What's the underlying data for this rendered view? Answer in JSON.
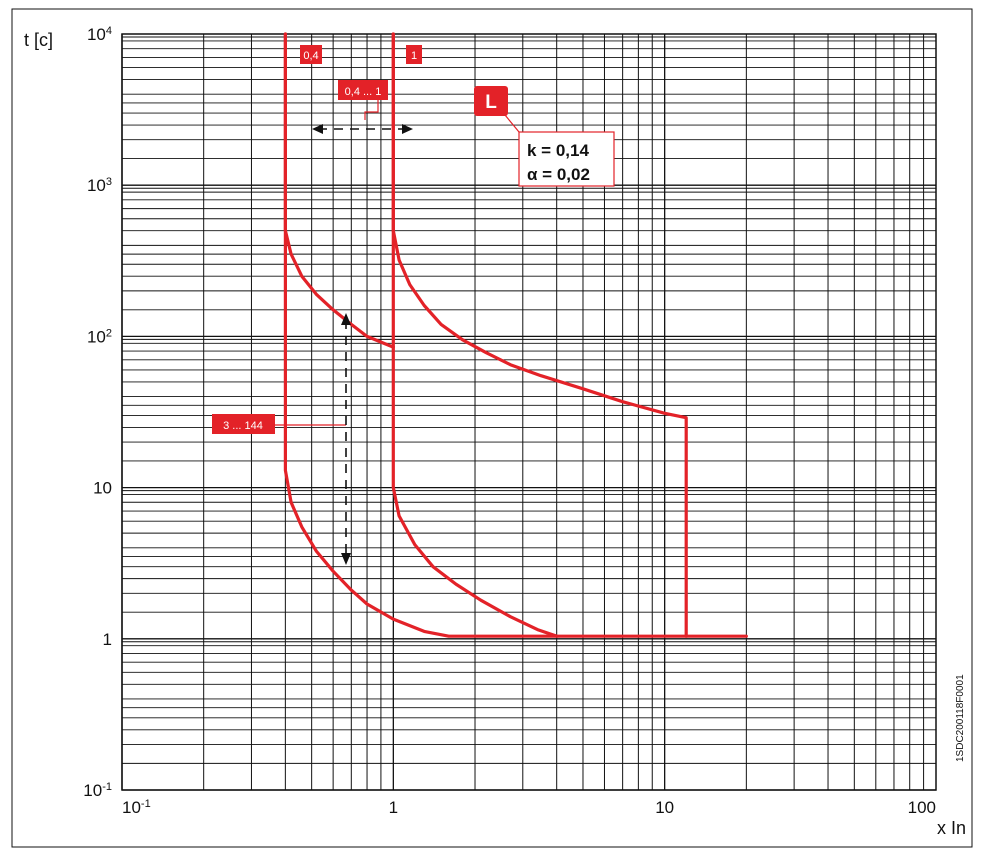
{
  "chart_data": {
    "type": "line",
    "x_scale": "log",
    "y_scale": "log",
    "xlim": [
      0.1,
      100
    ],
    "ylim": [
      0.1,
      10000
    ],
    "grid": true,
    "ylabel": "t [c]",
    "xlabel": "x In",
    "x_ticks": [
      {
        "value": 0.1,
        "base": "10",
        "exp": "-1"
      },
      {
        "value": 1,
        "base": "1",
        "exp": ""
      },
      {
        "value": 10,
        "base": "10",
        "exp": ""
      },
      {
        "value": 100,
        "base": "100",
        "exp": ""
      }
    ],
    "y_ticks": [
      {
        "value": 0.1,
        "base": "10",
        "exp": "-1"
      },
      {
        "value": 1,
        "base": "1",
        "exp": ""
      },
      {
        "value": 10,
        "base": "10",
        "exp": ""
      },
      {
        "value": 100,
        "base": "10",
        "exp": "2"
      },
      {
        "value": 1000,
        "base": "10",
        "exp": "3"
      },
      {
        "value": 10000,
        "base": "10",
        "exp": "4"
      }
    ],
    "series": [
      {
        "points": [
          [
            0.4,
            10000
          ],
          [
            0.4,
            500
          ],
          [
            0.42,
            350
          ],
          [
            0.46,
            250
          ],
          [
            0.52,
            190
          ],
          [
            0.6,
            150
          ],
          [
            0.7,
            120
          ],
          [
            0.8,
            100
          ],
          [
            1.0,
            85
          ]
        ]
      },
      {
        "points": [
          [
            0.4,
            10000
          ],
          [
            0.4,
            13
          ],
          [
            0.42,
            8
          ],
          [
            0.46,
            5.5
          ],
          [
            0.52,
            3.8
          ],
          [
            0.6,
            2.8
          ],
          [
            0.7,
            2.1
          ],
          [
            0.8,
            1.7
          ],
          [
            1.0,
            1.35
          ],
          [
            1.3,
            1.12
          ],
          [
            1.6,
            1.04
          ],
          [
            20,
            1.04
          ]
        ]
      },
      {
        "points": [
          [
            1,
            10000
          ],
          [
            1,
            500
          ],
          [
            1.05,
            320
          ],
          [
            1.15,
            220
          ],
          [
            1.3,
            160
          ],
          [
            1.5,
            120
          ],
          [
            1.8,
            95
          ],
          [
            2.2,
            78
          ],
          [
            2.7,
            65
          ],
          [
            3.5,
            55
          ],
          [
            5,
            45
          ],
          [
            7,
            37
          ],
          [
            10,
            31
          ],
          [
            12,
            29
          ],
          [
            12,
            1.04
          ]
        ]
      },
      {
        "points": [
          [
            1,
            10000
          ],
          [
            1,
            10
          ],
          [
            1.05,
            6.5
          ],
          [
            1.2,
            4.2
          ],
          [
            1.4,
            3
          ],
          [
            1.7,
            2.3
          ],
          [
            2.1,
            1.8
          ],
          [
            2.7,
            1.4
          ],
          [
            3.4,
            1.15
          ],
          [
            4,
            1.04
          ]
        ]
      }
    ],
    "annotations": {
      "label_04": "0,4",
      "label_1": "1",
      "range_x": "0,4 ... 1",
      "range_t": "3 ... 144",
      "curve_badge": "L",
      "param_k": "k = 0,14",
      "param_alpha": "α = 0,02"
    },
    "doc_code": "1SDC200118F0001",
    "colors": {
      "curve": "#e32228",
      "grid": "#111111",
      "callout_bg": "#e32228"
    }
  }
}
